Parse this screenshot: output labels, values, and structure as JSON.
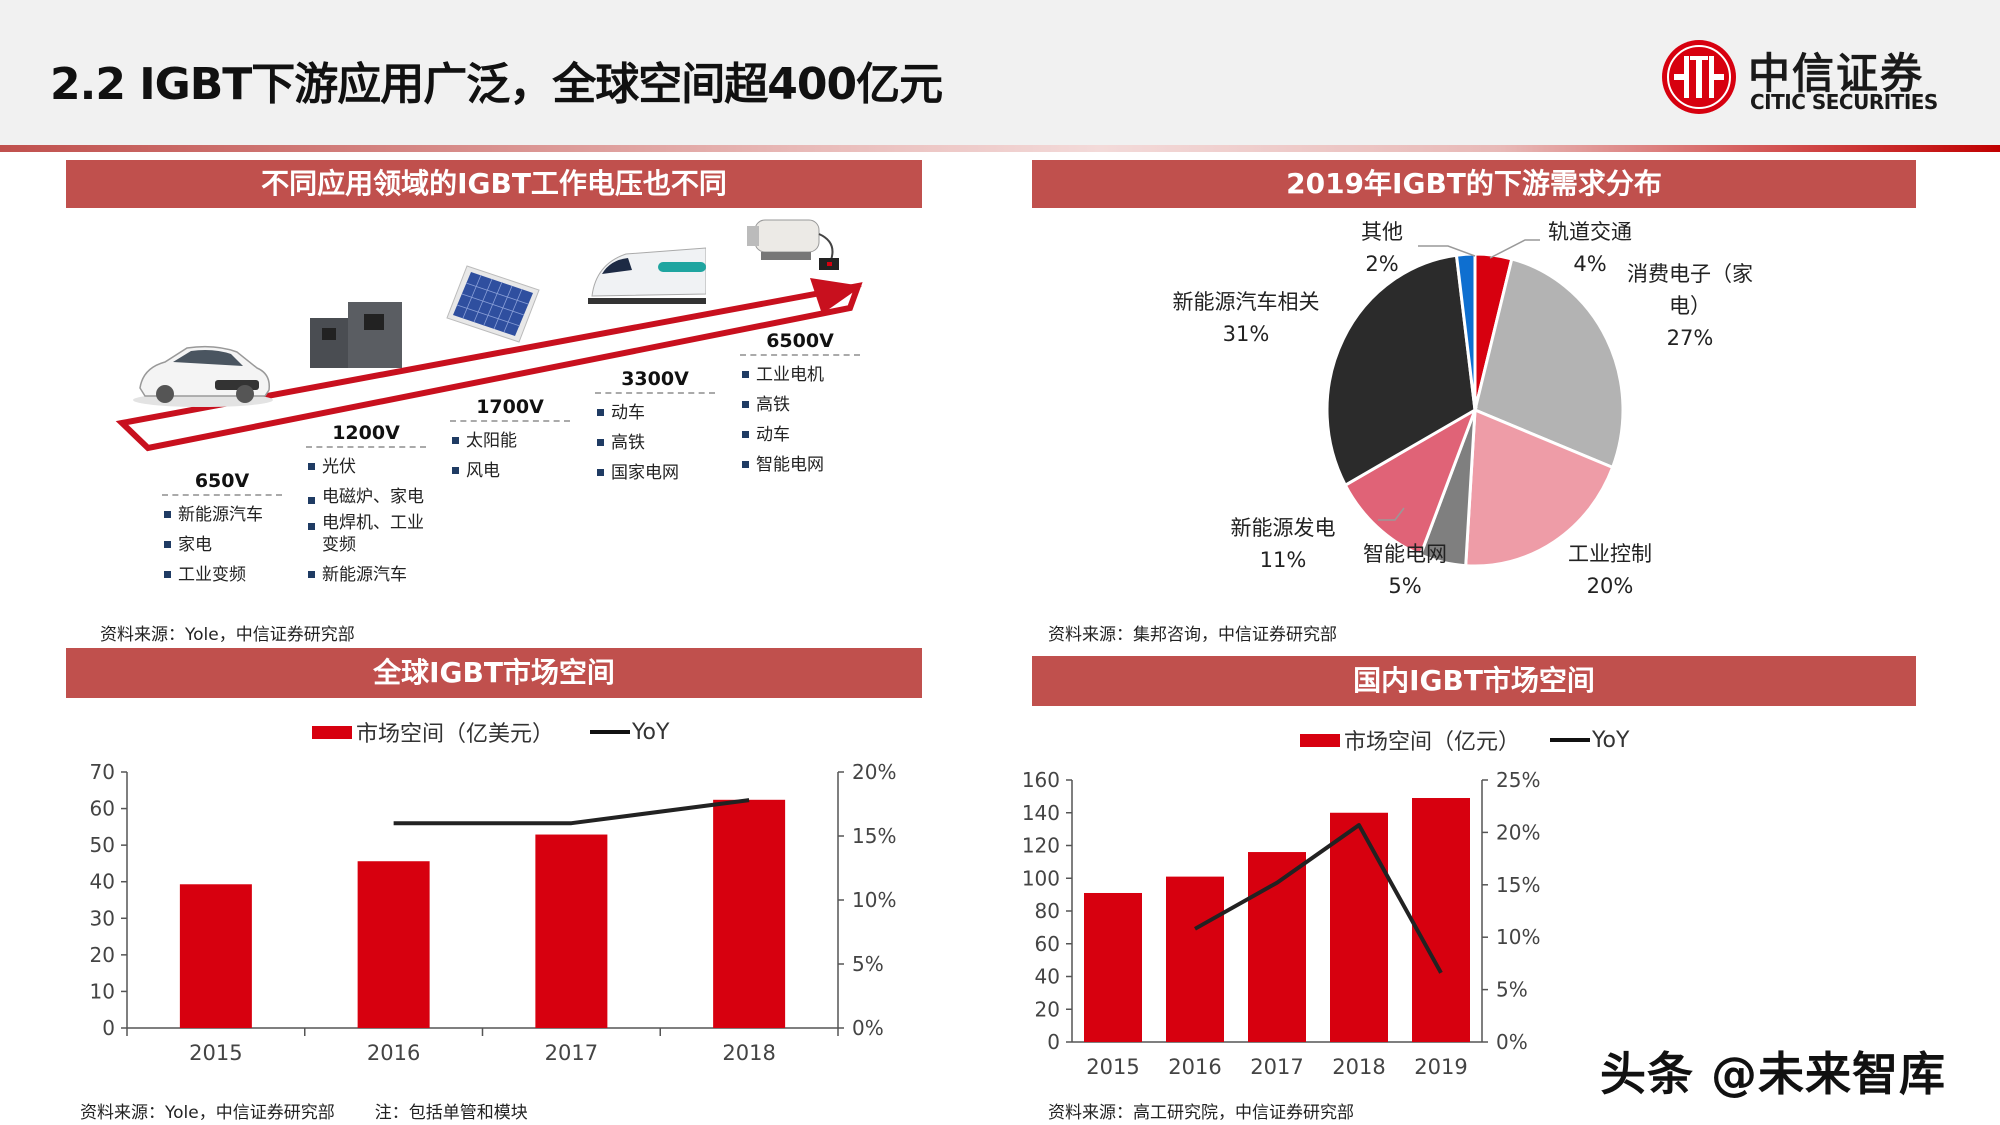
{
  "header": {
    "title": "2.2 IGBT下游应用广泛，全球空间超400亿元",
    "logo_cn": "中信证券",
    "logo_en": "CITIC SECURITIES"
  },
  "colors": {
    "panel_bar": "#c0504d",
    "bar_red": "#d7000f",
    "line_black": "#111111",
    "bullet_navy": "#1f3b63"
  },
  "panels": {
    "voltage": {
      "title": "不同应用领域的IGBT工作电压也不同",
      "columns": [
        {
          "voltage": "650V",
          "items": [
            "新能源汽车",
            "家电",
            "工业变频"
          ]
        },
        {
          "voltage": "1200V",
          "items": [
            "光伏",
            "电磁炉、家电",
            "电焊机、工业变频",
            "新能源汽车"
          ]
        },
        {
          "voltage": "1700V",
          "items": [
            "太阳能",
            "风电"
          ]
        },
        {
          "voltage": "3300V",
          "items": [
            "动车",
            "高铁",
            "国家电网"
          ]
        },
        {
          "voltage": "6500V",
          "items": [
            "工业电机",
            "高铁",
            "动车",
            "智能电网"
          ]
        }
      ],
      "illustrations": [
        "car-image",
        "inverter-image",
        "solar-panel-image",
        "bullet-train-image",
        "industrial-motor-image"
      ],
      "source": "资料来源：Yole，中信证券研究部"
    },
    "pie": {
      "title": "2019年IGBT的下游需求分布",
      "source": "资料来源：集邦咨询，中信证券研究部"
    },
    "global": {
      "title": "全球IGBT市场空间",
      "legend_bar": "市场空间（亿美元）",
      "legend_line": "YoY",
      "source": "资料来源：Yole，中信证券研究部",
      "note": "注：包括单管和模块"
    },
    "domestic": {
      "title": "国内IGBT市场空间",
      "legend_bar": "市场空间（亿元）",
      "legend_line": "YoY",
      "source": "资料来源：高工研究院，中信证券研究部"
    }
  },
  "watermark": "头条 @未来智库",
  "chart_data": [
    {
      "type": "pie",
      "title": "2019年IGBT的下游需求分布",
      "slices": [
        {
          "label": "轨道交通",
          "value": 4,
          "color": "#d7000f"
        },
        {
          "label": "消费电子（家电）",
          "value": 27,
          "color": "#b3b3b3"
        },
        {
          "label": "工业控制",
          "value": 20,
          "color": "#ee9ca7"
        },
        {
          "label": "智能电网",
          "value": 5,
          "color": "#7f7f7f"
        },
        {
          "label": "新能源发电",
          "value": 11,
          "color": "#e06377"
        },
        {
          "label": "新能源汽车相关",
          "value": 31,
          "color": "#2b2b2b"
        },
        {
          "label": "其他",
          "value": 2,
          "color": "#0e6fd0"
        }
      ]
    },
    {
      "type": "bar+line",
      "title": "全球IGBT市场空间",
      "categories": [
        "2015",
        "2016",
        "2017",
        "2018"
      ],
      "series": [
        {
          "name": "市场空间（亿美元）",
          "type": "bar",
          "axis": "left",
          "values": [
            39.3,
            45.6,
            52.9,
            62.4
          ]
        },
        {
          "name": "YoY",
          "type": "line",
          "axis": "right",
          "values": [
            null,
            0.16,
            0.16,
            0.178
          ]
        }
      ],
      "ylim_left": [
        0,
        70
      ],
      "yticks_left": [
        "0",
        "10",
        "20",
        "30",
        "40",
        "50",
        "60",
        "70"
      ],
      "ylim_right": [
        0,
        0.2
      ],
      "yticks_right": [
        "0%",
        "5%",
        "10%",
        "15%",
        "20%"
      ],
      "legend_position": "top"
    },
    {
      "type": "bar+line",
      "title": "国内IGBT市场空间",
      "categories": [
        "2015",
        "2016",
        "2017",
        "2018",
        "2019"
      ],
      "series": [
        {
          "name": "市场空间（亿元）",
          "type": "bar",
          "axis": "left",
          "values": [
            91,
            101,
            116,
            140,
            149
          ]
        },
        {
          "name": "YoY",
          "type": "line",
          "axis": "right",
          "values": [
            null,
            0.108,
            0.152,
            0.207,
            0.066
          ]
        }
      ],
      "ylim_left": [
        0,
        160
      ],
      "yticks_left": [
        "0",
        "20",
        "40",
        "60",
        "80",
        "100",
        "120",
        "140",
        "160"
      ],
      "ylim_right": [
        0,
        0.25
      ],
      "yticks_right": [
        "0%",
        "5%",
        "10%",
        "15%",
        "20%",
        "25%"
      ],
      "legend_position": "top"
    }
  ]
}
